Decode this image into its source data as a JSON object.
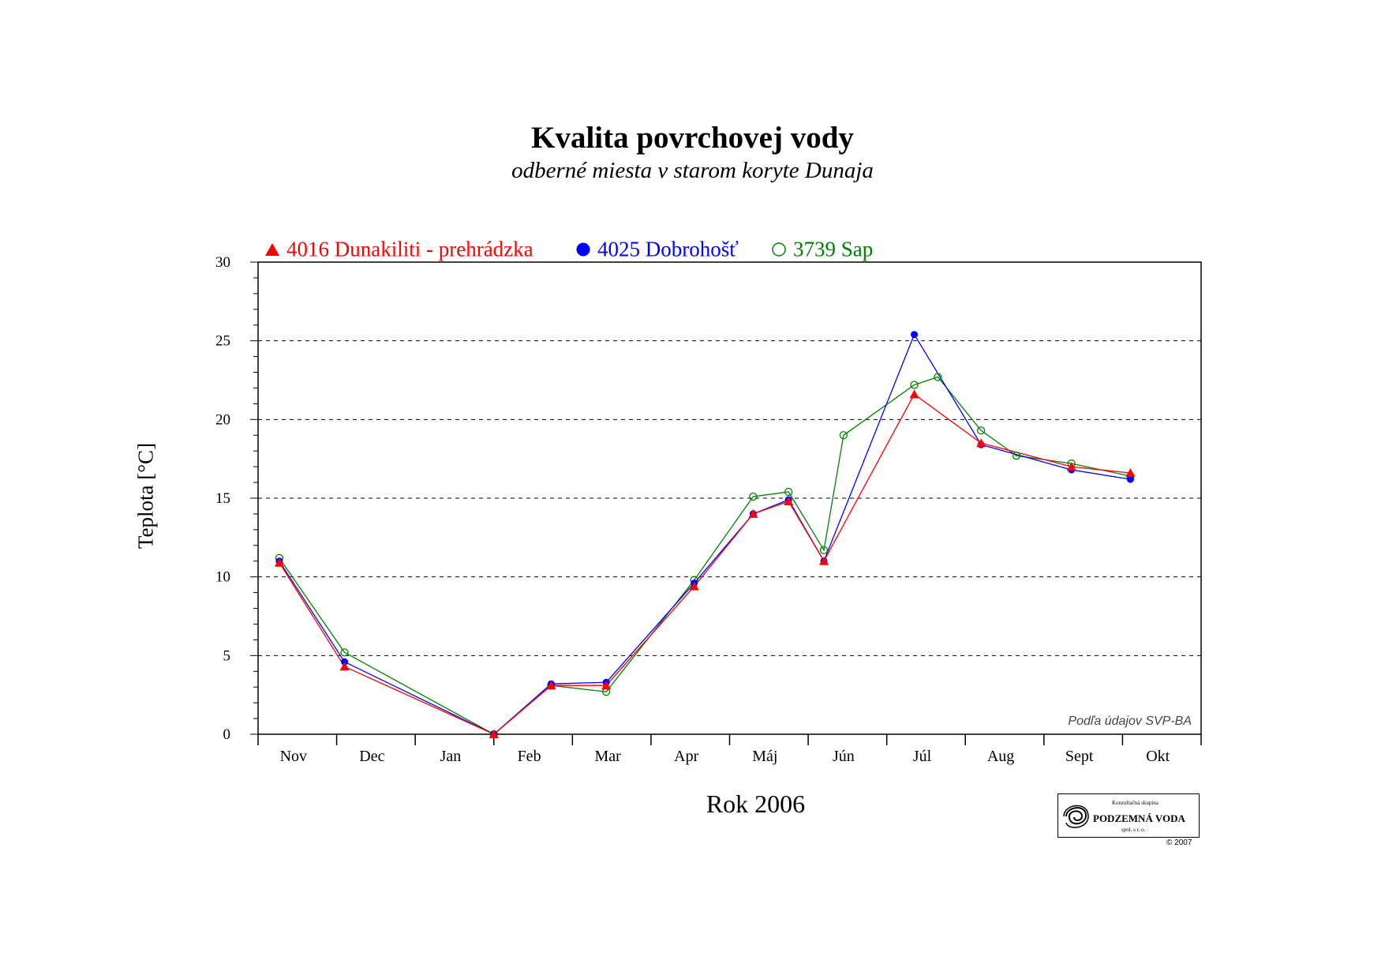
{
  "title": "Kvalita povrchovej vody",
  "subtitle": "odberné miesta v starom koryte Dunaja",
  "credit": "Podľa údajov SVP-BA",
  "logo": {
    "top_text": "Konzultačná skupina",
    "name": "PODZEMNÁ VODA",
    "bottom_text": "spol. s r. o.",
    "copyright": "© 2007"
  },
  "legend": [
    {
      "marker": "triangle",
      "label": "4016 Dunakiliti - prehrádzka",
      "color": "#ff0000"
    },
    {
      "marker": "filled-circle",
      "label": "4025 Dobrohošť",
      "color": "#0000ff"
    },
    {
      "marker": "open-circle",
      "label": "3739 Sap",
      "color": "#008000"
    }
  ],
  "chart_data": {
    "type": "line",
    "xlabel": "Rok 2006",
    "ylabel": "Teplota [°C]",
    "categories": [
      "Nov",
      "Dec",
      "Jan",
      "Feb",
      "Mar",
      "Apr",
      "Máj",
      "Jún",
      "Júl",
      "Aug",
      "Sept",
      "Okt"
    ],
    "x_range": [
      0,
      12
    ],
    "ylim": [
      0,
      30
    ],
    "yticks": [
      0,
      5,
      10,
      15,
      20,
      25,
      30
    ],
    "grid": "horizontal dashed",
    "legend_position": "top-left",
    "series": [
      {
        "name": "4016 Dunakiliti - prehrádzka",
        "color": "#ff0000",
        "marker": "triangle",
        "x": [
          0.27,
          1.1,
          3.0,
          3.73,
          4.43,
          5.55,
          6.3,
          6.75,
          7.2,
          8.35,
          9.2,
          10.35,
          11.1
        ],
        "y": [
          10.9,
          4.3,
          0.0,
          3.1,
          3.1,
          9.4,
          14.0,
          14.8,
          11.0,
          21.6,
          18.5,
          17.0,
          16.6
        ]
      },
      {
        "name": "4025 Dobrohošť",
        "color": "#0000ff",
        "marker": "filled-circle",
        "x": [
          0.27,
          1.1,
          3.0,
          3.73,
          4.43,
          5.55,
          6.3,
          6.75,
          7.2,
          8.35,
          9.2,
          10.35,
          11.1
        ],
        "y": [
          11.0,
          4.6,
          0.0,
          3.2,
          3.3,
          9.6,
          14.0,
          14.9,
          11.0,
          25.4,
          18.4,
          16.8,
          16.2
        ]
      },
      {
        "name": "3739 Sap",
        "color": "#008000",
        "marker": "open-circle",
        "x": [
          0.27,
          1.1,
          3.0,
          3.73,
          4.43,
          5.55,
          6.3,
          6.75,
          7.2,
          7.45,
          8.35,
          8.65,
          9.2,
          9.65,
          10.35,
          11.1
        ],
        "y": [
          11.2,
          5.2,
          0.0,
          3.1,
          2.7,
          9.8,
          15.1,
          15.4,
          11.7,
          19.0,
          22.2,
          22.7,
          19.3,
          17.7,
          17.2,
          16.4
        ]
      }
    ]
  }
}
